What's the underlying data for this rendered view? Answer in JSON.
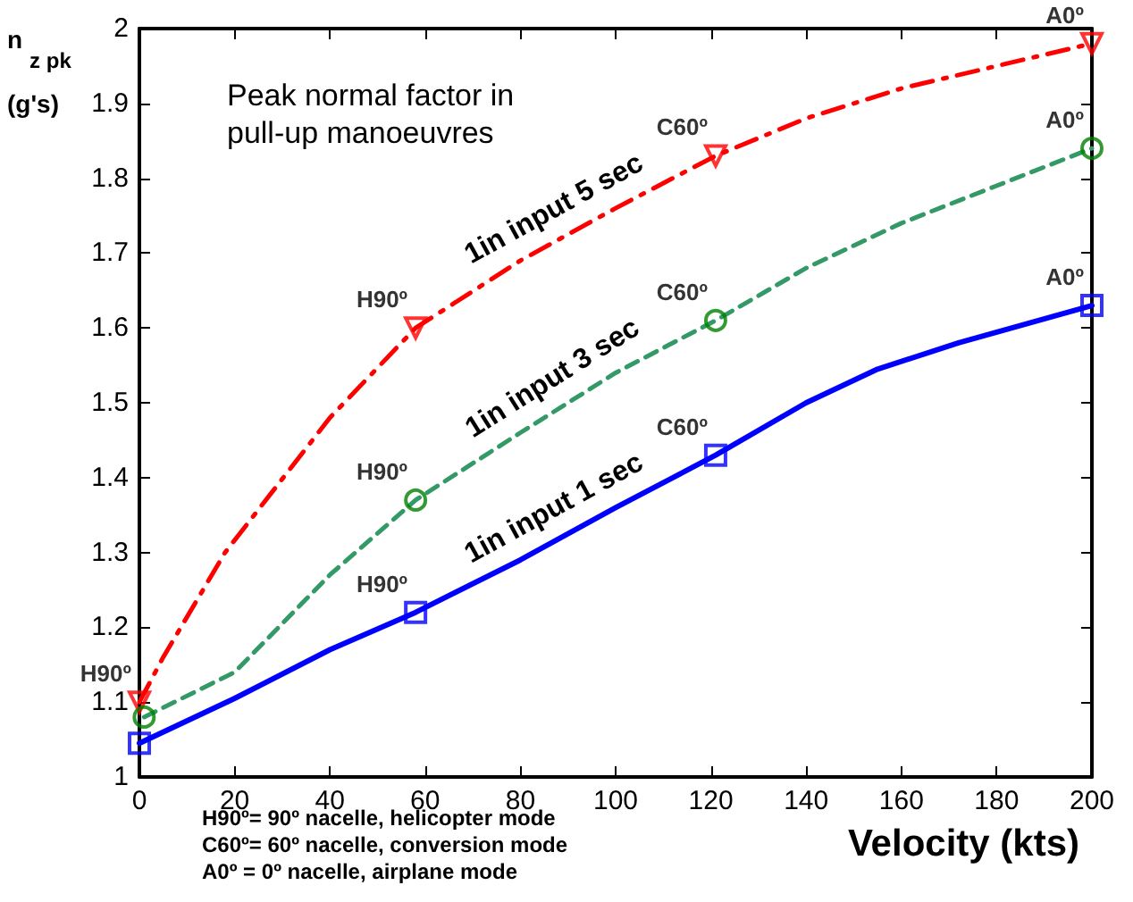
{
  "chart_data": {
    "type": "line",
    "title": "Peak normal factor in pull-up manoeuvres",
    "xlabel": "Velocity (kts)",
    "ylabel": "n$_{z pk}$\n(g's)",
    "xlim": [
      0,
      200
    ],
    "xticks": [
      0,
      20,
      40,
      60,
      80,
      100,
      120,
      140,
      160,
      180,
      200
    ],
    "ylim": [
      1,
      2
    ],
    "yticks": [
      1,
      1.1,
      1.2,
      1.3,
      1.4,
      1.5,
      1.6,
      1.7,
      1.8,
      1.9,
      2
    ],
    "grid": false,
    "legend": false,
    "series": [
      {
        "name": "1in input 5 sec",
        "color": "#ff0000",
        "line_style": "dashdot",
        "marker": "none",
        "x": [
          0,
          5,
          18,
          40,
          58,
          80,
          100,
          121,
          140,
          160,
          180,
          200
        ],
        "values": [
          1.1,
          1.16,
          1.3,
          1.48,
          1.6,
          1.69,
          1.76,
          1.83,
          1.88,
          1.92,
          1.95,
          1.98
        ]
      },
      {
        "name": "1in input 3 sec",
        "color": "#339966",
        "line_style": "dashed",
        "marker": "none",
        "x": [
          1,
          20,
          40,
          58,
          80,
          100,
          121,
          140,
          160,
          180,
          200
        ],
        "values": [
          1.08,
          1.14,
          1.27,
          1.37,
          1.46,
          1.54,
          1.61,
          1.68,
          1.74,
          1.79,
          1.84
        ]
      },
      {
        "name": "1in input 1 sec",
        "color": "#0000ff",
        "line_style": "solid",
        "marker": "none",
        "x": [
          0,
          20,
          40,
          58,
          80,
          100,
          121,
          140,
          155,
          172,
          200
        ],
        "values": [
          1.045,
          1.105,
          1.17,
          1.22,
          1.29,
          1.36,
          1.43,
          1.5,
          1.545,
          1.58,
          1.63
        ]
      },
      {
        "type": "scatter",
        "color": "#ff0000",
        "marker": "triangle",
        "x": [
          0,
          58,
          121,
          200
        ],
        "values": [
          1.1,
          1.6,
          1.83,
          1.98
        ],
        "value_labels": [
          "H90º",
          "H90º",
          "C60º",
          "A0º"
        ]
      },
      {
        "type": "scatter",
        "color": "#008000",
        "marker": "circle",
        "x": [
          1,
          58,
          121,
          200
        ],
        "values": [
          1.08,
          1.37,
          1.61,
          1.84
        ],
        "value_labels": [
          null,
          "H90º",
          "C60º",
          "A0º"
        ]
      },
      {
        "type": "scatter",
        "color": "#0000ff",
        "marker": "square",
        "x": [
          0,
          58,
          121,
          200
        ],
        "values": [
          1.045,
          1.22,
          1.43,
          1.63
        ],
        "value_labels": [
          null,
          "H90º",
          "C60º",
          "A0º"
        ]
      }
    ],
    "annotations": [
      "H90º= 90º nacelle, helicopter mode",
      "C60º= 60º nacelle, conversion mode",
      "A0º = 0º nacelle, airplane mode"
    ]
  }
}
